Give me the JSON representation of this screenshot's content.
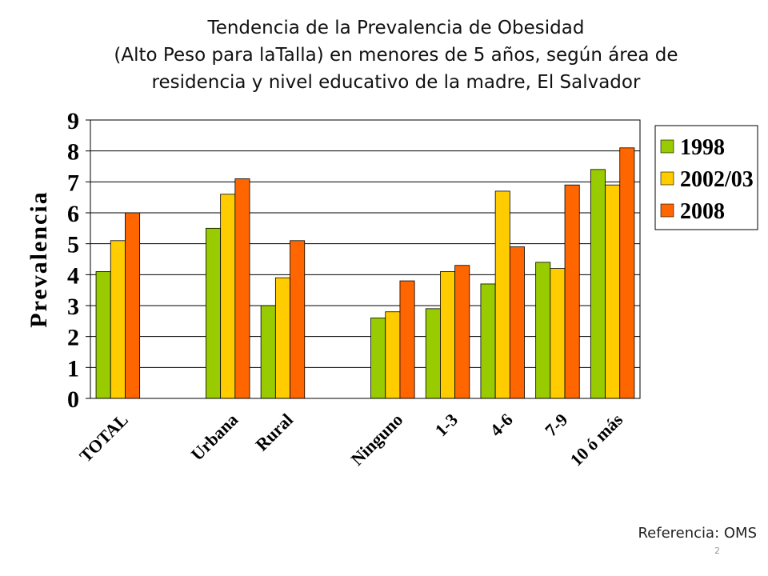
{
  "title_lines": [
    "Tendencia de la Prevalencia de Obesidad",
    "(Alto Peso para laTalla) en menores de 5 años, según área de",
    "residencia y nivel educativo de la madre, El Salvador"
  ],
  "reference": "Referencia: OMS",
  "page_number": "2",
  "chart_data": {
    "type": "bar",
    "title": "Tendencia de la Prevalencia de Obesidad (Alto Peso para laTalla) en menores de 5 años, según área de residencia y nivel educativo de la madre, El Salvador",
    "xlabel": "",
    "ylabel": "Prevalencia",
    "ylim": [
      0,
      9
    ],
    "yticks": [
      "0",
      "1",
      "2",
      "3",
      "4",
      "5",
      "6",
      "7",
      "8",
      "9"
    ],
    "grid": "horizontal",
    "legend_position": "right",
    "categories": [
      "TOTAL",
      "",
      "Urbana",
      "Rural",
      "",
      "Ninguno",
      "1-3",
      "4-6",
      "7-9",
      "10 ó más"
    ],
    "series": [
      {
        "name": "1998",
        "color": "#99CC00",
        "values": [
          4.1,
          null,
          5.5,
          3.0,
          null,
          2.6,
          2.9,
          3.7,
          4.4,
          7.4
        ]
      },
      {
        "name": "2002/03",
        "color": "#FFCC00",
        "values": [
          5.1,
          null,
          6.6,
          3.9,
          null,
          2.8,
          4.1,
          6.7,
          4.2,
          6.9
        ]
      },
      {
        "name": "2008",
        "color": "#FF6600",
        "values": [
          6.0,
          null,
          7.1,
          5.1,
          null,
          3.8,
          4.3,
          4.9,
          6.9,
          8.1
        ]
      }
    ]
  }
}
